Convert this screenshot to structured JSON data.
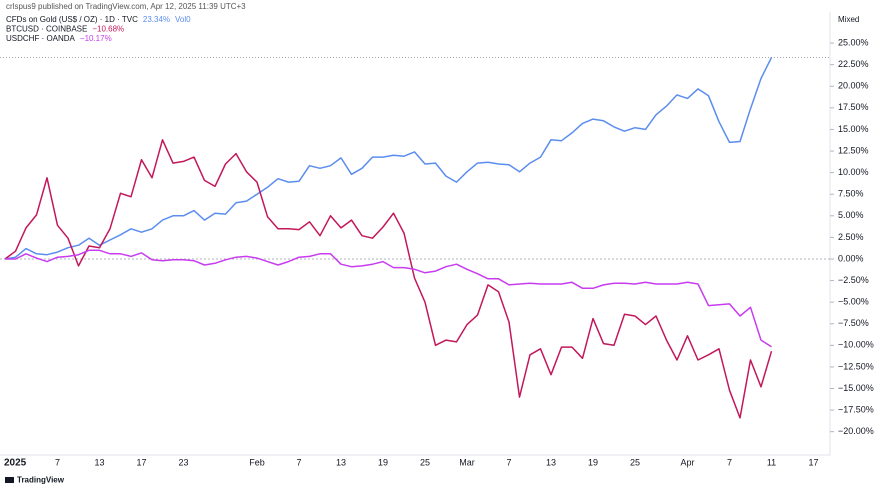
{
  "chart_data": {
    "type": "line",
    "header": "crlspus9 published on TradingView.com, Apr 12, 2025 11:39 UTC+3",
    "scale_mode": "Mixed",
    "brand": "TradingView",
    "vol": "Vol0",
    "categories": [
      null,
      "2025",
      null,
      null,
      null,
      "7",
      null,
      null,
      null,
      "13",
      null,
      null,
      null,
      "17",
      null,
      null,
      null,
      "23",
      null,
      null,
      null,
      null,
      null,
      null,
      "Feb",
      null,
      null,
      null,
      "7",
      null,
      null,
      null,
      "13",
      null,
      null,
      null,
      "19",
      null,
      null,
      null,
      "25",
      null,
      null,
      null,
      "Mar",
      null,
      null,
      null,
      "7",
      null,
      null,
      null,
      "13",
      null,
      null,
      null,
      "19",
      null,
      null,
      null,
      "25",
      null,
      null,
      null,
      null,
      "Apr",
      null,
      null,
      null,
      "7",
      null,
      null,
      null,
      "11",
      null,
      null,
      null,
      "17",
      null
    ],
    "series": [
      {
        "name": "CFDs on Gold (US$ / OZ) · 1D · TVC",
        "color": "#5b8def",
        "last_label": "23.34%",
        "values": [
          0,
          0.2,
          1.2,
          0.6,
          0.5,
          0.8,
          1.3,
          1.6,
          2.4,
          1.6,
          2.2,
          2.8,
          3.5,
          3.1,
          3.5,
          4.5,
          5.0,
          5.0,
          5.6,
          4.5,
          5.3,
          5.2,
          6.5,
          6.7,
          7.5,
          8.3,
          9.3,
          8.9,
          9.0,
          10.8,
          10.5,
          10.8,
          11.7,
          9.8,
          10.5,
          11.8,
          11.8,
          12.0,
          11.9,
          12.4,
          11.0,
          11.1,
          9.6,
          8.9,
          10.1,
          11.1,
          11.2,
          11.0,
          10.9,
          10.1,
          11.1,
          11.8,
          13.8,
          13.7,
          14.6,
          15.7,
          16.2,
          16.0,
          15.3,
          14.8,
          15.2,
          15.0,
          16.7,
          17.7,
          19.0,
          18.6,
          19.7,
          18.9,
          15.9,
          13.5,
          13.6,
          17.4,
          20.9,
          23.34,
          null,
          null,
          null,
          null,
          null
        ]
      },
      {
        "name": "BTCUSD · COINBASE",
        "color": "#c2185b",
        "last_label": "−10.68%",
        "values": [
          0,
          0.9,
          3.6,
          5.1,
          9.4,
          3.9,
          2.4,
          -0.8,
          1.5,
          1.3,
          3.5,
          7.6,
          7.2,
          11.5,
          9.4,
          13.8,
          11.1,
          11.3,
          11.8,
          9.1,
          8.4,
          11.0,
          12.2,
          10.1,
          8.9,
          4.9,
          3.5,
          3.5,
          3.4,
          4.3,
          2.7,
          5.0,
          3.6,
          4.5,
          2.7,
          2.4,
          3.7,
          5.3,
          3.0,
          -2.2,
          -5.0,
          -10.0,
          -9.4,
          -9.6,
          -7.6,
          -6.5,
          -3.0,
          -3.8,
          -7.3,
          -16.0,
          -11.1,
          -10.4,
          -13.4,
          -10.2,
          -10.2,
          -11.5,
          -6.9,
          -9.8,
          -10.0,
          -6.4,
          -6.6,
          -7.6,
          -6.6,
          -9.4,
          -11.7,
          -8.9,
          -11.7,
          -11.1,
          -10.4,
          -15.2,
          -18.4,
          -11.7,
          -14.8,
          -10.68,
          null,
          null,
          null,
          null,
          null
        ]
      },
      {
        "name": "USDCHF · OANDA",
        "color": "#c83cf0",
        "last_label": "−10.17%",
        "values": [
          0,
          0,
          0.6,
          0.1,
          -0.3,
          0.2,
          0.3,
          0.5,
          1.0,
          1.0,
          0.6,
          0.6,
          0.3,
          0.7,
          -0.1,
          -0.2,
          -0.1,
          -0.1,
          -0.2,
          -0.7,
          -0.5,
          -0.1,
          0.2,
          0.3,
          0.1,
          -0.3,
          -0.7,
          -0.3,
          0.2,
          0.3,
          0.6,
          0.6,
          -0.6,
          -0.9,
          -0.8,
          -0.6,
          -0.3,
          -1.0,
          -1.0,
          -1.2,
          -1.6,
          -1.4,
          -0.9,
          -0.6,
          -1.2,
          -1.7,
          -2.3,
          -2.3,
          -3.0,
          -2.9,
          -2.8,
          -2.9,
          -2.9,
          -2.9,
          -2.7,
          -3.4,
          -3.4,
          -3.0,
          -2.8,
          -2.8,
          -2.9,
          -2.7,
          -2.9,
          -2.9,
          -2.9,
          -2.7,
          -2.9,
          -5.4,
          -5.3,
          -5.2,
          -6.6,
          -5.6,
          -9.4,
          -10.17,
          null,
          null,
          null,
          null,
          null
        ]
      }
    ],
    "ylim": [
      -22.7,
      28.6
    ],
    "yticks": [
      {
        "value": 25,
        "label": "25.00%"
      },
      {
        "value": 22.5,
        "label": "22.50%"
      },
      {
        "value": 20,
        "label": "20.00%"
      },
      {
        "value": 17.5,
        "label": "17.50%"
      },
      {
        "value": 15,
        "label": "15.00%"
      },
      {
        "value": 12.5,
        "label": "12.50%"
      },
      {
        "value": 10,
        "label": "10.00%"
      },
      {
        "value": 7.5,
        "label": "7.50%"
      },
      {
        "value": 5,
        "label": "5.00%"
      },
      {
        "value": 2.5,
        "label": "2.50%"
      },
      {
        "value": 0,
        "label": "0.00%"
      },
      {
        "value": -2.5,
        "label": "−2.50%"
      },
      {
        "value": -5,
        "label": "−5.00%"
      },
      {
        "value": -7.5,
        "label": "−7.50%"
      },
      {
        "value": -10,
        "label": "−10.00%"
      },
      {
        "value": -12.5,
        "label": "−12.50%"
      },
      {
        "value": -15,
        "label": "−15.00%"
      },
      {
        "value": -17.5,
        "label": "−17.50%"
      },
      {
        "value": -20,
        "label": "−20.00%"
      }
    ],
    "grid": false
  }
}
